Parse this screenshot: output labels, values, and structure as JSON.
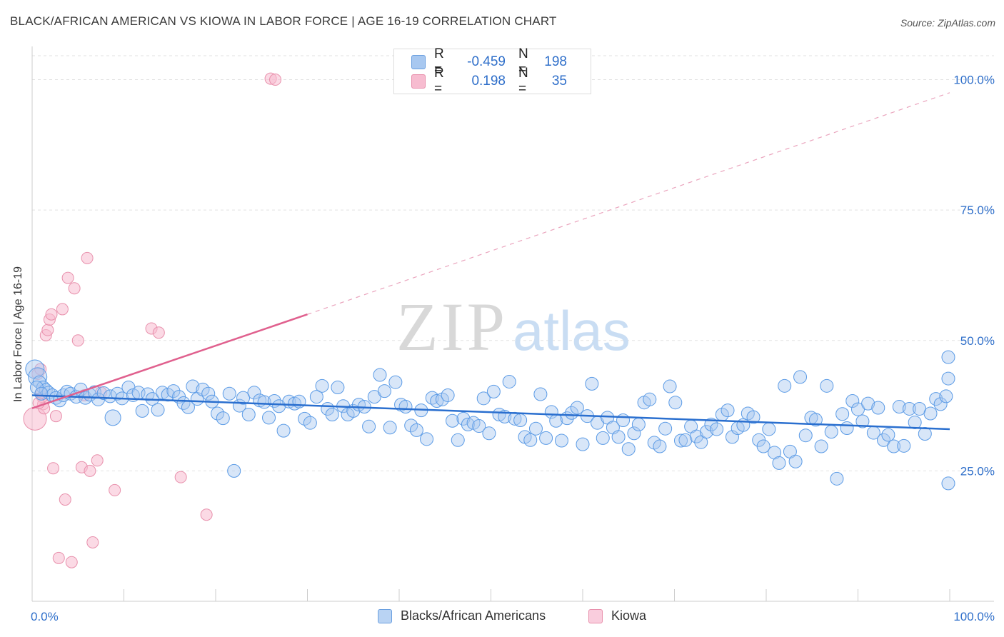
{
  "title": "BLACK/AFRICAN AMERICAN VS KIOWA IN LABOR FORCE | AGE 16-19 CORRELATION CHART",
  "source": "Source: ZipAtlas.com",
  "watermark": {
    "zip": "ZIP",
    "atlas": "atlas"
  },
  "legend": {
    "rows": [
      {
        "r_label": "R =",
        "r_value": "-0.459",
        "n_label": "N =",
        "n_value": "198",
        "color": "#a8c8f0",
        "border": "#6a9fe0"
      },
      {
        "r_label": "R =",
        "r_value": "0.198",
        "n_label": "N =",
        "n_value": "35",
        "color": "#f7bcd0",
        "border": "#e890ac"
      }
    ]
  },
  "bottom_legend": {
    "blacks_label": "Blacks/African Americans",
    "kiowa_label": "Kiowa"
  },
  "chart_data": {
    "type": "scatter",
    "title": "BLACK/AFRICAN AMERICAN VS KIOWA IN LABOR FORCE | AGE 16-19 CORRELATION CHART",
    "xlabel": "",
    "ylabel": "In Labor Force | Age 16-19",
    "xlim": [
      0,
      100
    ],
    "ylim": [
      0,
      105
    ],
    "x_tick_labels": [
      "0.0%",
      "100.0%"
    ],
    "y_tick_labels": [
      "25.0%",
      "50.0%",
      "75.0%",
      "100.0%"
    ],
    "y_ticks": [
      25,
      50,
      75,
      100
    ],
    "grid": true,
    "colors": {
      "blacks": "#5b9be6",
      "blacks_line": "#2a6fcf",
      "kiowa": "#ef8fb0",
      "kiowa_line": "#e0608e",
      "axis_text": "#2f6fca"
    },
    "series": [
      {
        "name": "Blacks/African Americans",
        "trend": {
          "x": [
            0,
            100
          ],
          "y": [
            39.5,
            33
          ]
        },
        "points": [
          [
            0.3,
            44.5
          ],
          [
            0.6,
            43
          ],
          [
            0.8,
            42
          ],
          [
            1.2,
            41
          ],
          [
            1.5,
            40.5
          ],
          [
            1.8,
            40
          ],
          [
            2.2,
            39.5
          ],
          [
            2.6,
            39
          ],
          [
            3,
            38.5
          ],
          [
            3.4,
            39.5
          ],
          [
            3.8,
            40.2
          ],
          [
            4.2,
            39.8
          ],
          [
            4.8,
            39.2
          ],
          [
            5.3,
            40.6
          ],
          [
            5.8,
            39
          ],
          [
            6.3,
            39.6
          ],
          [
            6.8,
            40.1
          ],
          [
            7.2,
            38.7
          ],
          [
            7.8,
            39.9
          ],
          [
            8.5,
            39.3
          ],
          [
            8.8,
            35.2
          ],
          [
            9.3,
            39.8
          ],
          [
            9.8,
            38.9
          ],
          [
            10.5,
            41
          ],
          [
            11,
            39.5
          ],
          [
            11.6,
            40
          ],
          [
            12,
            36.5
          ],
          [
            12.6,
            39.7
          ],
          [
            13.1,
            38.8
          ],
          [
            13.7,
            36.7
          ],
          [
            14.2,
            40
          ],
          [
            14.8,
            39.6
          ],
          [
            15.4,
            40.3
          ],
          [
            16,
            39.2
          ],
          [
            16.5,
            38
          ],
          [
            17,
            37.2
          ],
          [
            17.5,
            41.2
          ],
          [
            18,
            38.8
          ],
          [
            18.6,
            40.6
          ],
          [
            19.2,
            39.8
          ],
          [
            19.6,
            38.3
          ],
          [
            20.2,
            36
          ],
          [
            20.8,
            35.1
          ],
          [
            21.5,
            39.8
          ],
          [
            22,
            25
          ],
          [
            22.6,
            37.5
          ],
          [
            23,
            39
          ],
          [
            23.6,
            35.8
          ],
          [
            24.2,
            40
          ],
          [
            24.8,
            38.5
          ],
          [
            25.3,
            38.2
          ],
          [
            25.8,
            35.2
          ],
          [
            26.4,
            38.4
          ],
          [
            26.9,
            37.4
          ],
          [
            27.4,
            32.7
          ],
          [
            28,
            38.3
          ],
          [
            28.6,
            37.9
          ],
          [
            29.1,
            38.3
          ],
          [
            29.7,
            35
          ],
          [
            30.3,
            34.2
          ],
          [
            31,
            39.2
          ],
          [
            31.6,
            41.3
          ],
          [
            32.2,
            36.9
          ],
          [
            32.7,
            35.8
          ],
          [
            33.3,
            41
          ],
          [
            33.9,
            37.4
          ],
          [
            34.4,
            35.8
          ],
          [
            35,
            36.5
          ],
          [
            35.6,
            37.7
          ],
          [
            36.2,
            37.3
          ],
          [
            36.7,
            33.5
          ],
          [
            37.3,
            39.2
          ],
          [
            37.9,
            43.4
          ],
          [
            38.4,
            40.3
          ],
          [
            39,
            33.3
          ],
          [
            39.6,
            42
          ],
          [
            40.2,
            37.7
          ],
          [
            40.7,
            37.3
          ],
          [
            41.3,
            33.7
          ],
          [
            41.9,
            32.8
          ],
          [
            42.4,
            36.6
          ],
          [
            43,
            31.1
          ],
          [
            43.6,
            39
          ],
          [
            44.1,
            38.4
          ],
          [
            44.7,
            38.7
          ],
          [
            45.3,
            39.5
          ],
          [
            45.8,
            34.6
          ],
          [
            46.4,
            30.9
          ],
          [
            47,
            35
          ],
          [
            47.5,
            33.9
          ],
          [
            48.1,
            34.2
          ],
          [
            48.7,
            33.6
          ],
          [
            49.2,
            38.9
          ],
          [
            49.8,
            32.2
          ],
          [
            50.3,
            40.2
          ],
          [
            50.9,
            35.8
          ],
          [
            51.5,
            35.4
          ],
          [
            52,
            42.1
          ],
          [
            52.6,
            35
          ],
          [
            53.2,
            34.7
          ],
          [
            53.7,
            31.5
          ],
          [
            54.3,
            30.9
          ],
          [
            54.9,
            33.1
          ],
          [
            55.4,
            39.7
          ],
          [
            56,
            31.3
          ],
          [
            56.6,
            36.3
          ],
          [
            57.1,
            34.6
          ],
          [
            57.7,
            30.8
          ],
          [
            58.3,
            35.1
          ],
          [
            58.8,
            36.1
          ],
          [
            59.4,
            37.1
          ],
          [
            60,
            30.1
          ],
          [
            60.5,
            35.5
          ],
          [
            61,
            41.7
          ],
          [
            61.6,
            34.2
          ],
          [
            62.2,
            31.3
          ],
          [
            62.7,
            35.2
          ],
          [
            63.3,
            33.3
          ],
          [
            63.9,
            31.5
          ],
          [
            64.4,
            34.7
          ],
          [
            65,
            29.2
          ],
          [
            65.6,
            32.2
          ],
          [
            66.1,
            33.9
          ],
          [
            66.7,
            38.1
          ],
          [
            67.3,
            38.7
          ],
          [
            67.8,
            30.4
          ],
          [
            68.4,
            29.7
          ],
          [
            69,
            33.1
          ],
          [
            69.5,
            41.2
          ],
          [
            70.1,
            38.1
          ],
          [
            70.7,
            30.8
          ],
          [
            71.2,
            30.9
          ],
          [
            71.8,
            33.5
          ],
          [
            72.4,
            31.6
          ],
          [
            72.9,
            30.5
          ],
          [
            73.5,
            32.5
          ],
          [
            74,
            33.9
          ],
          [
            74.6,
            33
          ],
          [
            75.2,
            35.8
          ],
          [
            75.8,
            36.6
          ],
          [
            76.3,
            31.5
          ],
          [
            76.9,
            33.2
          ],
          [
            77.5,
            33.8
          ],
          [
            78,
            36
          ],
          [
            78.6,
            35.3
          ],
          [
            79.2,
            30.9
          ],
          [
            79.7,
            29.7
          ],
          [
            80.3,
            33
          ],
          [
            80.9,
            28.5
          ],
          [
            81.4,
            26.5
          ],
          [
            82,
            41.3
          ],
          [
            82.6,
            28.7
          ],
          [
            83.2,
            26.8
          ],
          [
            83.7,
            43
          ],
          [
            84.3,
            31.8
          ],
          [
            84.9,
            35.2
          ],
          [
            85.4,
            34.8
          ],
          [
            86,
            29.7
          ],
          [
            86.6,
            41.3
          ],
          [
            87.1,
            32.5
          ],
          [
            87.7,
            23.5
          ],
          [
            88.3,
            35.9
          ],
          [
            88.8,
            33.2
          ],
          [
            89.4,
            38.4
          ],
          [
            90,
            36.8
          ],
          [
            90.5,
            34.5
          ],
          [
            91.1,
            37.9
          ],
          [
            91.7,
            32.3
          ],
          [
            92.2,
            37.1
          ],
          [
            92.8,
            30.9
          ],
          [
            93.3,
            31.9
          ],
          [
            93.9,
            29.7
          ],
          [
            94.5,
            37.3
          ],
          [
            95,
            29.8
          ],
          [
            95.6,
            36.9
          ],
          [
            96.2,
            34.3
          ],
          [
            96.7,
            36.9
          ],
          [
            97.3,
            32.1
          ],
          [
            97.9,
            36
          ],
          [
            98.5,
            38.8
          ],
          [
            99,
            37.8
          ],
          [
            99.6,
            39.3
          ],
          [
            100,
            22.6
          ],
          [
            101,
            42.7
          ],
          [
            102,
            46.8
          ],
          [
            0.5,
            41
          ],
          [
            1,
            39.8
          ]
        ]
      },
      {
        "name": "Kiowa",
        "trend": {
          "x": [
            0,
            30
          ],
          "y": [
            37,
            55
          ]
        },
        "trend_extended": {
          "x": [
            30,
            100
          ],
          "y": [
            55,
            97.5
          ]
        },
        "points": [
          [
            0,
            35
          ],
          [
            0.3,
            43.6
          ],
          [
            0.6,
            44.5
          ],
          [
            0.9,
            37.8
          ],
          [
            1.1,
            39.2
          ],
          [
            1.3,
            37
          ],
          [
            1.5,
            51
          ],
          [
            1.7,
            52
          ],
          [
            1.9,
            54
          ],
          [
            2.1,
            55
          ],
          [
            2.3,
            25.5
          ],
          [
            2.6,
            35.5
          ],
          [
            2.9,
            8.3
          ],
          [
            3.3,
            56
          ],
          [
            3.6,
            19.5
          ],
          [
            3.9,
            62
          ],
          [
            4.3,
            7.5
          ],
          [
            4.6,
            60
          ],
          [
            5,
            50
          ],
          [
            5.4,
            25.7
          ],
          [
            5.7,
            39.5
          ],
          [
            6,
            65.8
          ],
          [
            6.3,
            25
          ],
          [
            6.6,
            11.3
          ],
          [
            7.1,
            27
          ],
          [
            7.5,
            40
          ],
          [
            9,
            21.3
          ],
          [
            13,
            52.3
          ],
          [
            13.8,
            51.5
          ],
          [
            16.2,
            23.8
          ],
          [
            19,
            16.6
          ],
          [
            26,
            100.2
          ],
          [
            26.5,
            100
          ],
          [
            0.4,
            38
          ],
          [
            1,
            40
          ]
        ]
      }
    ]
  }
}
